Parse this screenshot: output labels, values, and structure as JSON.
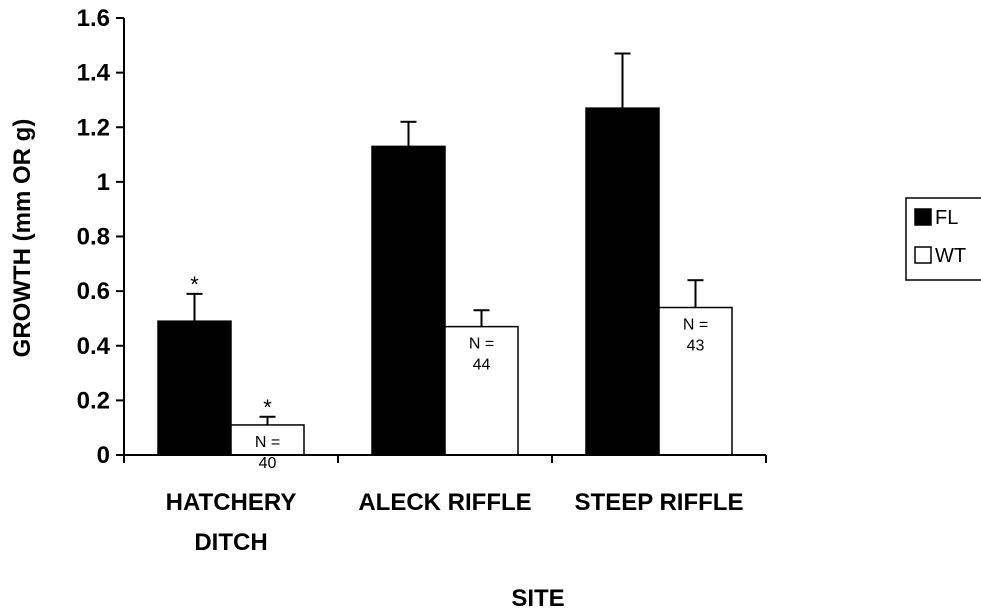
{
  "chart_data": {
    "type": "bar",
    "title": "",
    "xlabel": "SITE",
    "ylabel": "GROWTH (mm OR g)",
    "ylim": [
      0,
      1.6
    ],
    "yticks": [
      0,
      0.2,
      0.4,
      0.6,
      0.8,
      1,
      1.2,
      1.4,
      1.6
    ],
    "ytick_labels": [
      "0",
      "0.2",
      "0.4",
      "0.6",
      "0.8",
      "1",
      "1.2",
      "1.4",
      "1.6"
    ],
    "categories": [
      [
        "HATCHERY",
        "DITCH"
      ],
      [
        "ALECK RIFFLE"
      ],
      [
        "STEEP RIFFLE"
      ]
    ],
    "series": [
      {
        "name": "FL",
        "color": "#000000",
        "values": [
          0.49,
          1.13,
          1.27
        ],
        "error": [
          0.1,
          0.09,
          0.2
        ],
        "markers": [
          "*",
          "",
          ""
        ]
      },
      {
        "name": "WT",
        "color": "#ffffff",
        "values": [
          0.11,
          0.47,
          0.54
        ],
        "error": [
          0.03,
          0.06,
          0.1
        ],
        "markers": [
          "*",
          "",
          ""
        ]
      }
    ],
    "annotations": [
      {
        "series": 1,
        "category": 0,
        "text_lines": [
          "N =",
          "40"
        ]
      },
      {
        "series": 1,
        "category": 1,
        "text_lines": [
          "N =",
          "44"
        ]
      },
      {
        "series": 1,
        "category": 2,
        "text_lines": [
          "N =",
          "43"
        ]
      }
    ],
    "legend": {
      "placement": "right",
      "entries": [
        "FL",
        "WT"
      ]
    },
    "grid": false
  }
}
